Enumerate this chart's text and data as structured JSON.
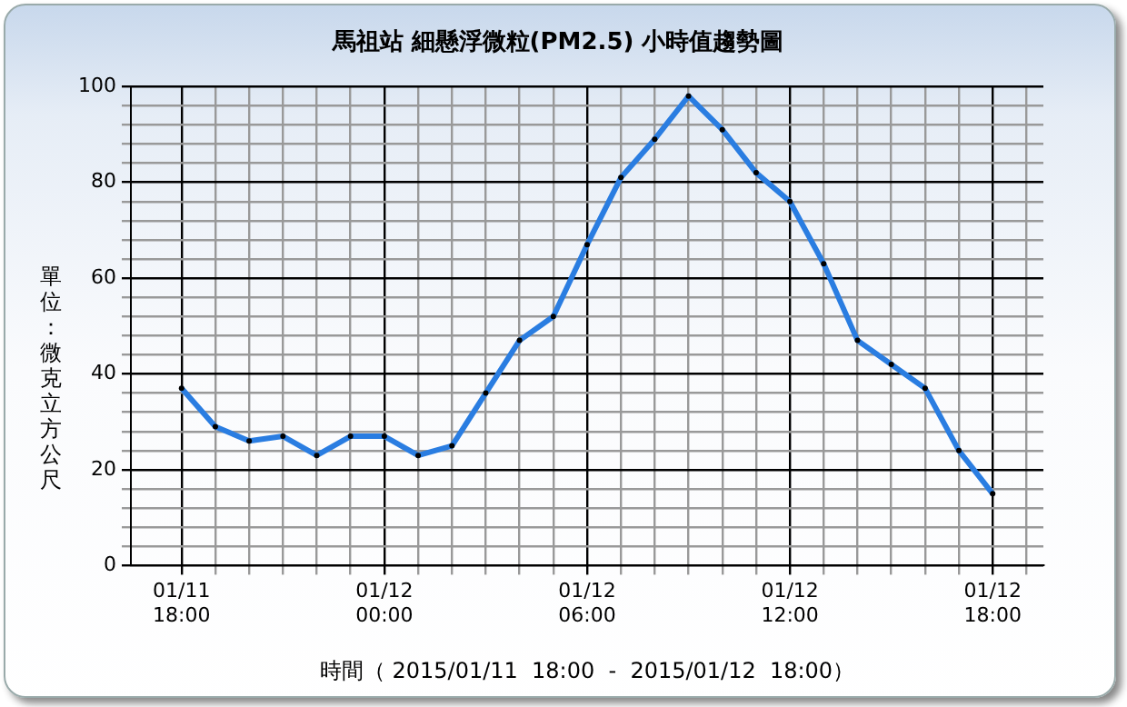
{
  "chart_data": {
    "type": "line",
    "title": "馬祖站 細懸浮微粒(PM2.5) 小時值趨勢圖",
    "xlabel": "時間（ 2015/01/11  18:00  -  2015/01/12  18:00）",
    "ylabel": "單位：微克立方公尺",
    "x": [
      "2015-01-11T18:00",
      "2015-01-11T19:00",
      "2015-01-11T20:00",
      "2015-01-11T21:00",
      "2015-01-11T22:00",
      "2015-01-11T23:00",
      "2015-01-12T00:00",
      "2015-01-12T01:00",
      "2015-01-12T02:00",
      "2015-01-12T03:00",
      "2015-01-12T04:00",
      "2015-01-12T05:00",
      "2015-01-12T06:00",
      "2015-01-12T07:00",
      "2015-01-12T08:00",
      "2015-01-12T09:00",
      "2015-01-12T10:00",
      "2015-01-12T11:00",
      "2015-01-12T12:00",
      "2015-01-12T13:00",
      "2015-01-12T14:00",
      "2015-01-12T15:00",
      "2015-01-12T16:00",
      "2015-01-12T17:00",
      "2015-01-12T18:00"
    ],
    "series": [
      {
        "color": "#2a7de1",
        "values": [
          37,
          29,
          26,
          27,
          23,
          27,
          27,
          23,
          25,
          36,
          47,
          52,
          67,
          81,
          89,
          98,
          91,
          82,
          76,
          63,
          47,
          42,
          37,
          24,
          15
        ]
      }
    ],
    "xlim": [
      "2015-01-11T16:30",
      "2015-01-12T19:30"
    ],
    "xticks": [
      {
        "value": "2015-01-11T18:00",
        "label": "01/11 18:00"
      },
      {
        "value": "2015-01-11T19:00",
        "label": null
      },
      {
        "value": "2015-01-11T20:00",
        "label": null
      },
      {
        "value": "2015-01-11T21:00",
        "label": null
      },
      {
        "value": "2015-01-11T22:00",
        "label": null
      },
      {
        "value": "2015-01-11T23:00",
        "label": null
      },
      {
        "value": "2015-01-12T00:00",
        "label": "01/12 00:00"
      },
      {
        "value": "2015-01-12T01:00",
        "label": null
      },
      {
        "value": "2015-01-12T02:00",
        "label": null
      },
      {
        "value": "2015-01-12T03:00",
        "label": null
      },
      {
        "value": "2015-01-12T04:00",
        "label": null
      },
      {
        "value": "2015-01-12T05:00",
        "label": null
      },
      {
        "value": "2015-01-12T06:00",
        "label": "01/12 06:00"
      },
      {
        "value": "2015-01-12T07:00",
        "label": null
      },
      {
        "value": "2015-01-12T08:00",
        "label": null
      },
      {
        "value": "2015-01-12T09:00",
        "label": null
      },
      {
        "value": "2015-01-12T10:00",
        "label": null
      },
      {
        "value": "2015-01-12T11:00",
        "label": null
      },
      {
        "value": "2015-01-12T12:00",
        "label": "01/12 12:00"
      },
      {
        "value": "2015-01-12T13:00",
        "label": null
      },
      {
        "value": "2015-01-12T14:00",
        "label": null
      },
      {
        "value": "2015-01-12T15:00",
        "label": null
      },
      {
        "value": "2015-01-12T16:00",
        "label": null
      },
      {
        "value": "2015-01-12T17:00",
        "label": null
      },
      {
        "value": "2015-01-12T18:00",
        "label": "01/12 18:00"
      },
      {
        "value": "2015-01-12T19:00",
        "label": null
      }
    ],
    "ylim": [
      0,
      100
    ],
    "yticks": [
      0,
      {
        "value": 4,
        "label": null
      },
      {
        "value": 8,
        "label": null
      },
      {
        "value": 12,
        "label": null
      },
      {
        "value": 16,
        "label": null
      },
      20,
      {
        "value": 24,
        "label": null
      },
      {
        "value": 28,
        "label": null
      },
      {
        "value": 32,
        "label": null
      },
      {
        "value": 36,
        "label": null
      },
      40,
      {
        "value": 44,
        "label": null
      },
      {
        "value": 48,
        "label": null
      },
      {
        "value": 52,
        "label": null
      },
      {
        "value": 56,
        "label": null
      },
      60,
      {
        "value": 64,
        "label": null
      },
      {
        "value": 68,
        "label": null
      },
      {
        "value": 72,
        "label": null
      },
      {
        "value": 76,
        "label": null
      },
      80,
      {
        "value": 84,
        "label": null
      },
      {
        "value": 88,
        "label": null
      },
      {
        "value": 92,
        "label": null
      },
      {
        "value": 96,
        "label": null
      },
      100
    ],
    "grid": true,
    "legend": false,
    "marker": "circle",
    "line_style": "solid"
  }
}
